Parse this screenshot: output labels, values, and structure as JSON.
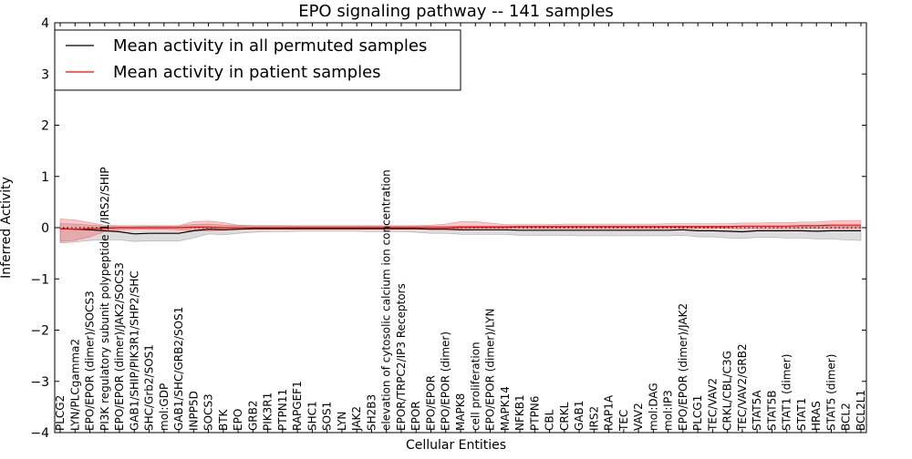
{
  "chart_data": {
    "type": "line",
    "title": "EPO signaling pathway -- 141 samples",
    "xlabel": "Cellular Entities",
    "ylabel": "Inferred Activity",
    "ylim": [
      -4,
      4
    ],
    "yticks": [
      -4,
      -3,
      -2,
      -1,
      0,
      1,
      2,
      3,
      4
    ],
    "ytick_labels": [
      "−4",
      "−3",
      "−2",
      "−1",
      "0",
      "1",
      "2",
      "3",
      "4"
    ],
    "grid": false,
    "legend_position": "top-left",
    "categories": [
      "PLCG2",
      "LYN/PLCgamma2",
      "EPO/EPOR (dimer)/SOCS3",
      "PI3K regulatory subunit polypeptide 1/IRS2/SHIP",
      "EPO/EPOR (dimer)/JAK2/SOCS3",
      "GAB1/SHIP/PIK3R1/SHP2/SHC",
      "SHC/Grb2/SOS1",
      "mol:GDP",
      "GAB1/SHC/GRB2/SOS1",
      "INPP5D",
      "SOCS3",
      "BTK",
      "EPO",
      "GRB2",
      "PIK3R1",
      "PTPN11",
      "RAPGEF1",
      "SHC1",
      "SOS1",
      "LYN",
      "JAK2",
      "SH2B3",
      "elevation of cytosolic calcium ion concentration",
      "EPOR/TRPC2/IP3 Receptors",
      "EPOR",
      "EPO/EPOR",
      "EPO/EPOR (dimer)",
      "MAPK8",
      "cell proliferation",
      "EPO/EPOR (dimer)/LYN",
      "MAPK14",
      "NFKB1",
      "PTPN6",
      "CBL",
      "CRKL",
      "GAB1",
      "IRS2",
      "RAP1A",
      "TEC",
      "VAV2",
      "mol:DAG",
      "mol:IP3",
      "EPO/EPOR (dimer)/JAK2",
      "PLCG1",
      "TEC/VAV2",
      "CRKL/CBL/C3G",
      "TEC/VAV2/GRB2",
      "STAT5A",
      "STAT5B",
      "STAT1 (dimer)",
      "STAT1",
      "HRAS",
      "STAT5 (dimer)",
      "BCL2",
      "BCL2L1"
    ],
    "series": [
      {
        "name": "Mean activity in all permuted samples",
        "color": "#000000",
        "values": [
          -0.02,
          -0.03,
          -0.04,
          -0.06,
          -0.08,
          -0.12,
          -0.11,
          -0.11,
          -0.11,
          -0.06,
          -0.03,
          -0.04,
          -0.03,
          -0.02,
          -0.02,
          -0.02,
          -0.02,
          -0.02,
          -0.02,
          -0.02,
          -0.02,
          -0.02,
          -0.02,
          -0.02,
          -0.02,
          -0.03,
          -0.03,
          -0.04,
          -0.04,
          -0.04,
          -0.04,
          -0.05,
          -0.05,
          -0.05,
          -0.05,
          -0.05,
          -0.05,
          -0.05,
          -0.05,
          -0.05,
          -0.05,
          -0.05,
          -0.04,
          -0.06,
          -0.06,
          -0.07,
          -0.08,
          -0.06,
          -0.06,
          -0.06,
          -0.06,
          -0.07,
          -0.06,
          -0.06,
          -0.06
        ],
        "band_lower": [
          -0.3,
          -0.28,
          -0.25,
          -0.24,
          -0.24,
          -0.27,
          -0.26,
          -0.26,
          -0.26,
          -0.2,
          -0.12,
          -0.14,
          -0.11,
          -0.09,
          -0.08,
          -0.08,
          -0.07,
          -0.07,
          -0.07,
          -0.07,
          -0.07,
          -0.08,
          -0.08,
          -0.08,
          -0.09,
          -0.11,
          -0.11,
          -0.13,
          -0.13,
          -0.13,
          -0.13,
          -0.15,
          -0.15,
          -0.15,
          -0.15,
          -0.16,
          -0.16,
          -0.16,
          -0.16,
          -0.16,
          -0.16,
          -0.16,
          -0.15,
          -0.18,
          -0.18,
          -0.2,
          -0.21,
          -0.19,
          -0.19,
          -0.2,
          -0.2,
          -0.22,
          -0.22,
          -0.24,
          -0.25
        ],
        "band_upper": [
          0.08,
          0.07,
          0.05,
          0.03,
          0.02,
          0.02,
          0.03,
          0.03,
          0.03,
          0.06,
          0.07,
          0.05,
          0.04,
          0.04,
          0.04,
          0.04,
          0.03,
          0.03,
          0.03,
          0.03,
          0.03,
          0.03,
          0.03,
          0.03,
          0.03,
          0.03,
          0.03,
          0.03,
          0.03,
          0.03,
          0.03,
          0.03,
          0.03,
          0.03,
          0.03,
          0.03,
          0.03,
          0.03,
          0.03,
          0.03,
          0.03,
          0.03,
          0.03,
          0.03,
          0.03,
          0.03,
          0.03,
          0.03,
          0.03,
          0.03,
          0.03,
          0.03,
          0.03,
          0.03,
          0.03
        ],
        "line_style": "solid"
      },
      {
        "name": "Mean activity in patient samples",
        "color": "#ff0000",
        "values": [
          -0.02,
          -0.03,
          -0.02,
          -0.01,
          0.0,
          0.0,
          0.0,
          0.0,
          0.0,
          0.01,
          0.01,
          0.0,
          0.0,
          0.0,
          0.0,
          0.0,
          0.0,
          0.0,
          0.0,
          0.0,
          0.0,
          0.0,
          0.0,
          0.0,
          0.0,
          0.0,
          0.0,
          0.01,
          0.01,
          0.01,
          0.01,
          0.02,
          0.02,
          0.02,
          0.02,
          0.02,
          0.02,
          0.02,
          0.02,
          0.02,
          0.02,
          0.02,
          0.02,
          0.02,
          0.02,
          0.02,
          0.03,
          0.03,
          0.03,
          0.03,
          0.04,
          0.04,
          0.05,
          0.05,
          0.05
        ],
        "band_lower": [
          -0.27,
          -0.25,
          -0.18,
          -0.08,
          -0.04,
          -0.03,
          -0.03,
          -0.03,
          -0.04,
          -0.06,
          -0.06,
          -0.05,
          -0.03,
          -0.02,
          -0.02,
          -0.02,
          -0.02,
          -0.02,
          -0.02,
          -0.02,
          -0.02,
          -0.02,
          -0.02,
          -0.02,
          -0.02,
          -0.02,
          -0.02,
          -0.02,
          -0.01,
          -0.01,
          -0.01,
          -0.01,
          -0.01,
          -0.01,
          -0.01,
          -0.01,
          -0.01,
          -0.01,
          -0.01,
          -0.01,
          -0.01,
          -0.01,
          -0.01,
          -0.01,
          -0.01,
          -0.01,
          -0.01,
          -0.01,
          -0.01,
          -0.01,
          -0.01,
          -0.01,
          -0.01,
          -0.01,
          -0.01
        ],
        "band_upper": [
          0.17,
          0.15,
          0.1,
          0.05,
          0.04,
          0.04,
          0.04,
          0.04,
          0.04,
          0.12,
          0.13,
          0.1,
          0.05,
          0.04,
          0.04,
          0.04,
          0.04,
          0.04,
          0.04,
          0.04,
          0.04,
          0.04,
          0.04,
          0.04,
          0.04,
          0.05,
          0.07,
          0.12,
          0.12,
          0.09,
          0.06,
          0.06,
          0.06,
          0.06,
          0.07,
          0.07,
          0.07,
          0.07,
          0.07,
          0.07,
          0.07,
          0.08,
          0.08,
          0.08,
          0.08,
          0.08,
          0.09,
          0.09,
          0.1,
          0.1,
          0.11,
          0.11,
          0.13,
          0.14,
          0.14
        ],
        "line_style": "solid"
      }
    ],
    "reference_line": {
      "y": 0,
      "style": "dotted",
      "color": "#000000"
    }
  }
}
